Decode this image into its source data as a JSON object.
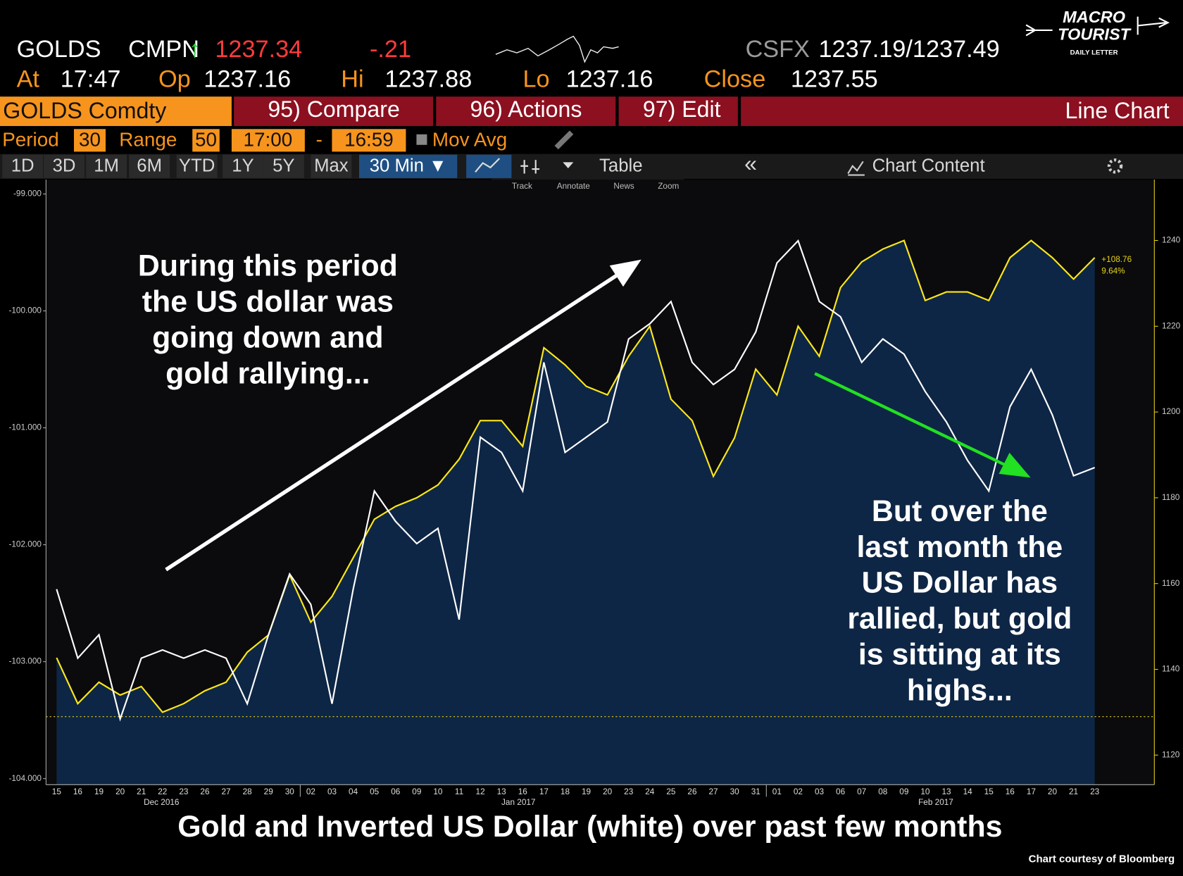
{
  "ui": {
    "quote": {
      "ticker": "GOLDS",
      "source": "CMPN",
      "arrow": "↑",
      "last": "1237.34",
      "change": "-.21",
      "contrib": "CSFX",
      "bid_ask": "1237.19/1237.49"
    },
    "logo": {
      "line1": "MACRO",
      "line2": "TOURIST",
      "line3": "DAILY LETTER"
    },
    "stats": {
      "at_label": "At",
      "at": "17:47",
      "open_label": "Op",
      "open": "1237.16",
      "high_label": "Hi",
      "high": "1237.88",
      "low_label": "Lo",
      "low": "1237.16",
      "close_label": "Close",
      "close": "1237.55"
    },
    "menu": {
      "security": "GOLDS Comdty",
      "compare": "95) Compare",
      "actions": "96) Actions",
      "edit": "97) Edit",
      "view": "Line Chart"
    },
    "settings": {
      "period_label": "Period",
      "period": "30",
      "range_label": "Range",
      "range": "50",
      "start": "17:00",
      "dash": "-",
      "end": "16:59",
      "mov_avg": "Mov Avg"
    },
    "ranges": [
      "1D",
      "3D",
      "1M",
      "6M",
      "YTD",
      "1Y",
      "5Y",
      "Max"
    ],
    "interval": "30 Min ▼",
    "table": "Table",
    "collapse": "«",
    "chart_content": "Chart Content",
    "tools": [
      "Track",
      "Annotate",
      "News",
      "Zoom"
    ],
    "caption": "Gold and Inverted US Dollar (white) over past few months",
    "credit": "Chart courtesy of Bloomberg"
  },
  "chart_data": {
    "type": "line",
    "categories": [
      "15",
      "16",
      "19",
      "20",
      "21",
      "22",
      "23",
      "26",
      "27",
      "28",
      "29",
      "30",
      "02",
      "03",
      "04",
      "05",
      "06",
      "09",
      "10",
      "11",
      "12",
      "13",
      "16",
      "17",
      "18",
      "19",
      "20",
      "23",
      "24",
      "25",
      "26",
      "27",
      "30",
      "31",
      "01",
      "02",
      "03",
      "06",
      "07",
      "08",
      "09",
      "10",
      "13",
      "14",
      "15",
      "16",
      "17",
      "20",
      "21",
      "23"
    ],
    "periods": [
      "Dec 2016",
      "Jan 2017",
      "Feb 2017"
    ],
    "series": [
      {
        "color": "#ffe81a",
        "axis": "y2",
        "area_color": "#0e2645",
        "values": [
          1142.7,
          1132,
          1137,
          1134,
          1136,
          1130,
          1132,
          1135,
          1137,
          1144,
          1148,
          1162,
          1151,
          1157,
          1166,
          1175,
          1178,
          1180,
          1183,
          1189,
          1198,
          1198,
          1192,
          1215,
          1211,
          1206,
          1204,
          1213,
          1220,
          1203,
          1198,
          1185,
          1194,
          1210,
          1204,
          1220,
          1213,
          1229,
          1235,
          1238,
          1240,
          1226,
          1228,
          1228,
          1226,
          1236,
          1240,
          1236,
          1231,
          1236
        ]
      },
      {
        "color": "#ffffff",
        "values": [
          -102.38,
          -102.97,
          -102.77,
          -103.49,
          -102.97,
          -102.9,
          -102.97,
          -102.9,
          -102.97,
          -103.36,
          -102.77,
          -102.25,
          -102.51,
          -103.36,
          -102.38,
          -101.54,
          -101.8,
          -101.99,
          -101.86,
          -102.64,
          -101.08,
          -101.21,
          -101.54,
          -100.44,
          -101.21,
          -101.08,
          -100.95,
          -100.24,
          -100.11,
          -99.92,
          -100.44,
          -100.63,
          -100.5,
          -100.18,
          -99.59,
          -99.4,
          -99.92,
          -100.05,
          -100.44,
          -100.24,
          -100.37,
          -100.69,
          -100.95,
          -101.28,
          -101.54,
          -100.82,
          -100.5,
          -100.89,
          -101.41,
          -101.34
        ]
      }
    ],
    "ylim": [
      -104.052,
      -98.877
    ],
    "yticks": [
      {
        "value": -99,
        "label": "-99.000"
      },
      {
        "value": -100,
        "label": "-100.000"
      },
      {
        "value": -101,
        "label": "-101.000"
      },
      {
        "value": -102,
        "label": "-102.000"
      },
      {
        "value": -103,
        "label": "-103.000"
      },
      {
        "value": -104,
        "label": "-104.000"
      }
    ],
    "y2lim": [
      1113.1,
      1254.2
    ],
    "y2ticks": [
      1120,
      1140,
      1160,
      1180,
      1200,
      1220,
      1240
    ],
    "reference_line": -103.47,
    "last_value_labels": [
      "+108.76",
      "9.64%"
    ],
    "annotations": [
      [
        "During this period",
        "the US dollar was",
        "going down and",
        "gold rallying..."
      ],
      [
        "But over the",
        "last month the",
        "US Dollar has",
        "rallied, but gold",
        "is sitting at its",
        "highs..."
      ]
    ]
  }
}
